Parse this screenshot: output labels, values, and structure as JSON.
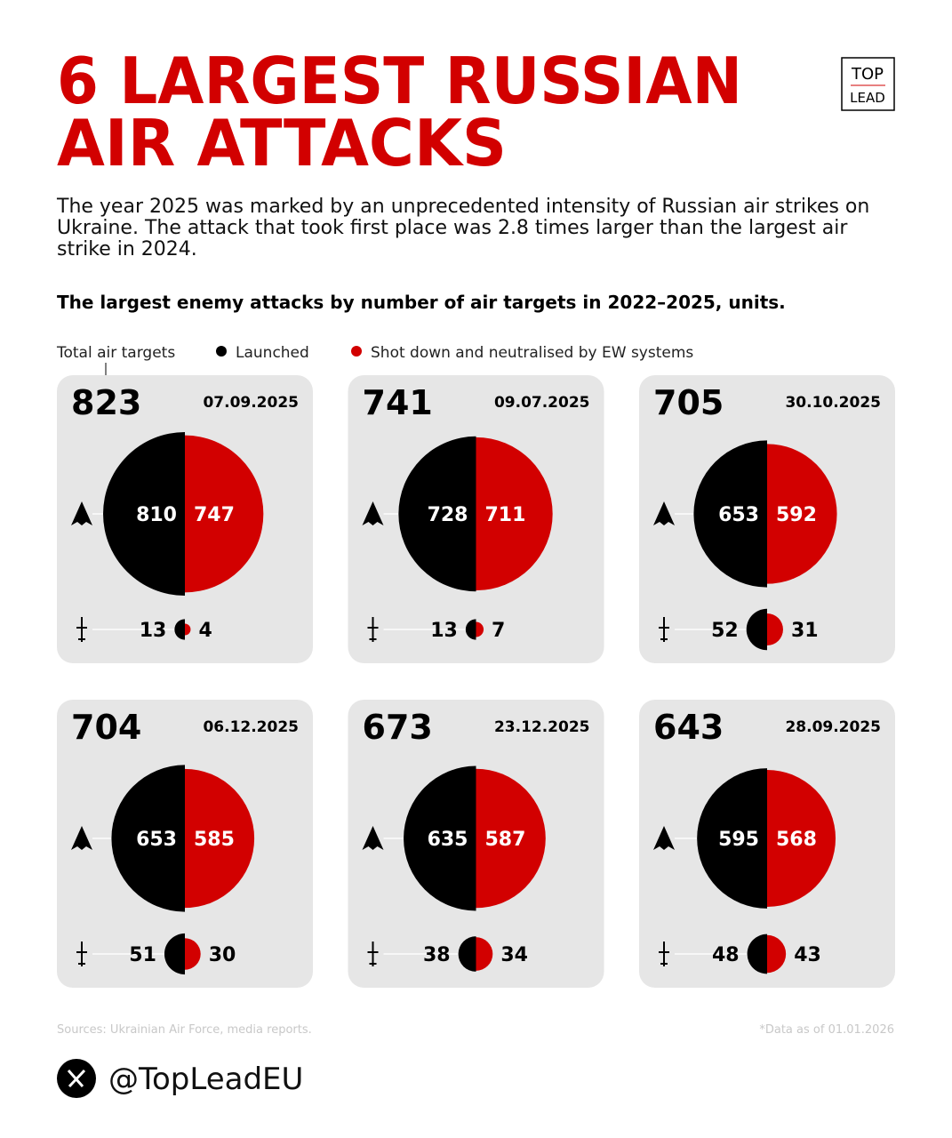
{
  "chart_data": {
    "type": "split-circles",
    "title_lines": [
      "6 LARGEST RUSSIAN",
      "AIR ATTACKS"
    ],
    "logo": [
      "TOP",
      "LEAD"
    ],
    "subtitle": "The year 2025 was marked by an unprecedented intensity of Russian air strikes on Ukraine. The attack that took first place was 2.8 times larger than the largest air strike in 2024.",
    "heading": "The largest enemy attacks by number of air targets in 2022–2025, units.",
    "total_label": "Total air targets",
    "series": [
      {
        "name": "Launched",
        "color": "#000000"
      },
      {
        "name": "Shot down and neutralised by EW systems",
        "color": "#d20000"
      }
    ],
    "cards": [
      {
        "total": 823,
        "date": "07.09.2025",
        "drones": [
          810,
          747
        ],
        "missiles": [
          13,
          4
        ]
      },
      {
        "total": 741,
        "date": "09.07.2025",
        "drones": [
          728,
          711
        ],
        "missiles": [
          13,
          7
        ]
      },
      {
        "total": 705,
        "date": "30.10.2025",
        "drones": [
          653,
          592
        ],
        "missiles": [
          52,
          31
        ]
      },
      {
        "total": 704,
        "date": "06.12.2025",
        "drones": [
          653,
          585
        ],
        "missiles": [
          51,
          30
        ]
      },
      {
        "total": 673,
        "date": "23.12.2025",
        "drones": [
          635,
          587
        ],
        "missiles": [
          38,
          34
        ]
      },
      {
        "total": 643,
        "date": "28.09.2025",
        "drones": [
          595,
          568
        ],
        "missiles": [
          48,
          43
        ]
      }
    ],
    "sources": "Sources: Ukrainian Air Force, media reports.",
    "note": "*Data as of 01.01.2026",
    "handle": "@TopLeadEU"
  }
}
